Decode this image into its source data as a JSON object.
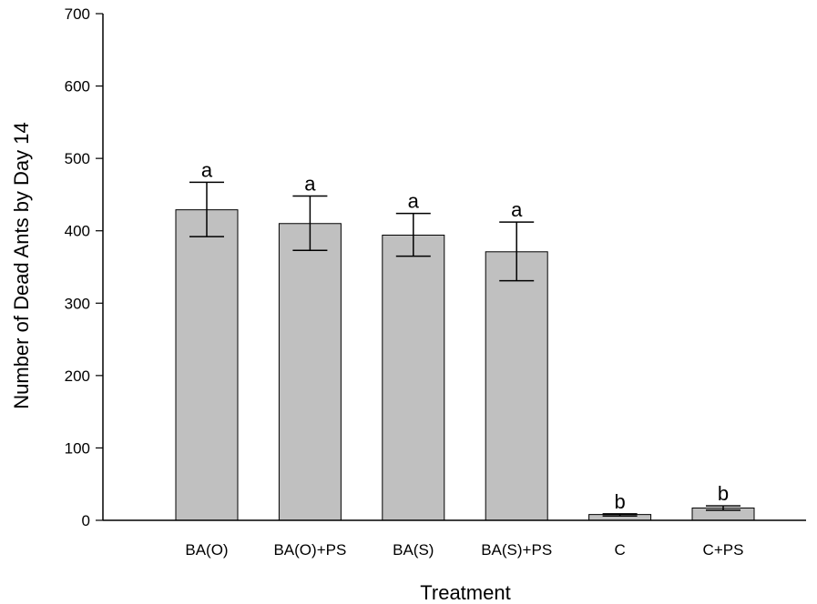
{
  "chart_data": {
    "type": "bar",
    "title": "",
    "xlabel": "Treatment",
    "ylabel": "Number of Dead Ants by Day 14",
    "ylim": [
      0,
      700
    ],
    "yticks": [
      0,
      100,
      200,
      300,
      400,
      500,
      600,
      700
    ],
    "categories": [
      "BA(O)",
      "BA(O)+PS",
      "BA(S)",
      "BA(S)+PS",
      "C",
      "C+PS"
    ],
    "values": [
      429,
      410,
      394,
      371,
      8,
      17
    ],
    "error_low": [
      392,
      373,
      365,
      331,
      6,
      14
    ],
    "error_high": [
      467,
      448,
      424,
      412,
      9,
      20
    ],
    "significance_letters": [
      "a",
      "a",
      "a",
      "a",
      "b",
      "b"
    ],
    "bar_color": "#c0c0c0",
    "bar_edge_color": "#000000",
    "grid": false,
    "legend": "none"
  }
}
